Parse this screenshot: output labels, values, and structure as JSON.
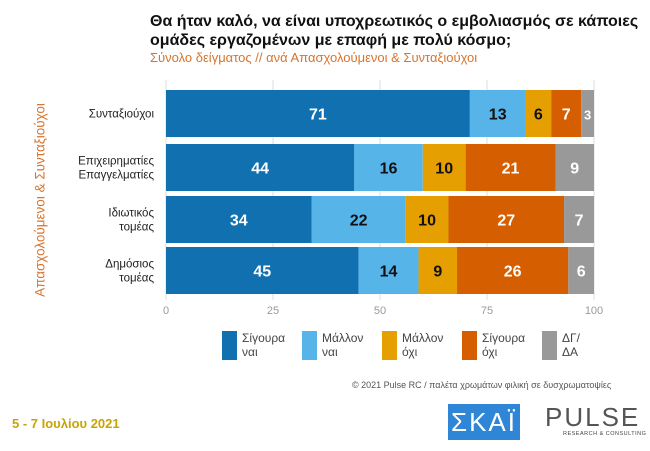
{
  "chart_data": {
    "type": "bar",
    "orientation": "horizontal",
    "stacked": true,
    "title": "Θα ήταν καλό, να είναι υποχρεωτικός ο εμβολιασμός σε κάποιες ομάδες εργαζομένων με επαφή με πολύ κόσμο;",
    "subtitle": "Σύνολο δείγματος // ανά Απασχολούμενοι & Συνταξιούχοι",
    "ylabel": "Απασχολούμενοι & Συνταξιούχοι",
    "xlabel": "",
    "xlim": [
      0,
      100
    ],
    "xticks": [
      0,
      25,
      50,
      75,
      100
    ],
    "grid": true,
    "legend_position": "bottom",
    "categories": [
      [
        "Συνταξιούχοι"
      ],
      [
        "Επιχειρηματίες",
        "Επαγγελματίες"
      ],
      [
        "Ιδιωτικός",
        "τομέας"
      ],
      [
        "Δημόσιος",
        "τομέας"
      ]
    ],
    "series": [
      {
        "name": "Σίγουρα ναι",
        "legend": [
          "Σίγουρα",
          "ναι"
        ],
        "color": "#1170b0",
        "label_color": "#ffffff",
        "values": [
          71,
          44,
          34,
          45
        ]
      },
      {
        "name": "Μάλλον ναι",
        "legend": [
          "Μάλλον",
          "ναι"
        ],
        "color": "#56b4e9",
        "label_color": "#111111",
        "values": [
          13,
          16,
          22,
          14
        ]
      },
      {
        "name": "Μάλλον όχι",
        "legend": [
          "Μάλλον",
          "όχι"
        ],
        "color": "#e69f00",
        "label_color": "#111111",
        "values": [
          6,
          10,
          10,
          9
        ]
      },
      {
        "name": "Σίγουρα όχι",
        "legend": [
          "Σίγουρα",
          "όχι"
        ],
        "color": "#d55e00",
        "label_color": "#ffffff",
        "values": [
          7,
          21,
          27,
          26
        ]
      },
      {
        "name": "ΔΓ/ΔΑ",
        "legend": [
          "ΔΓ/",
          "ΔΑ"
        ],
        "color": "#999999",
        "label_color": "#ffffff",
        "values": [
          3,
          9,
          7,
          6
        ]
      }
    ]
  },
  "footer": {
    "copyright": "© 2021 Pulse RC  /  παλέτα χρωμάτων φιλική σε δυσχρωματοψίες",
    "date": "5 - 7  Ιουλίου  2021"
  },
  "logos": {
    "skai": "ΣΚΑΪ",
    "pulse": "PULSE",
    "pulse_sub": "RESEARCH & CONSULTING"
  }
}
